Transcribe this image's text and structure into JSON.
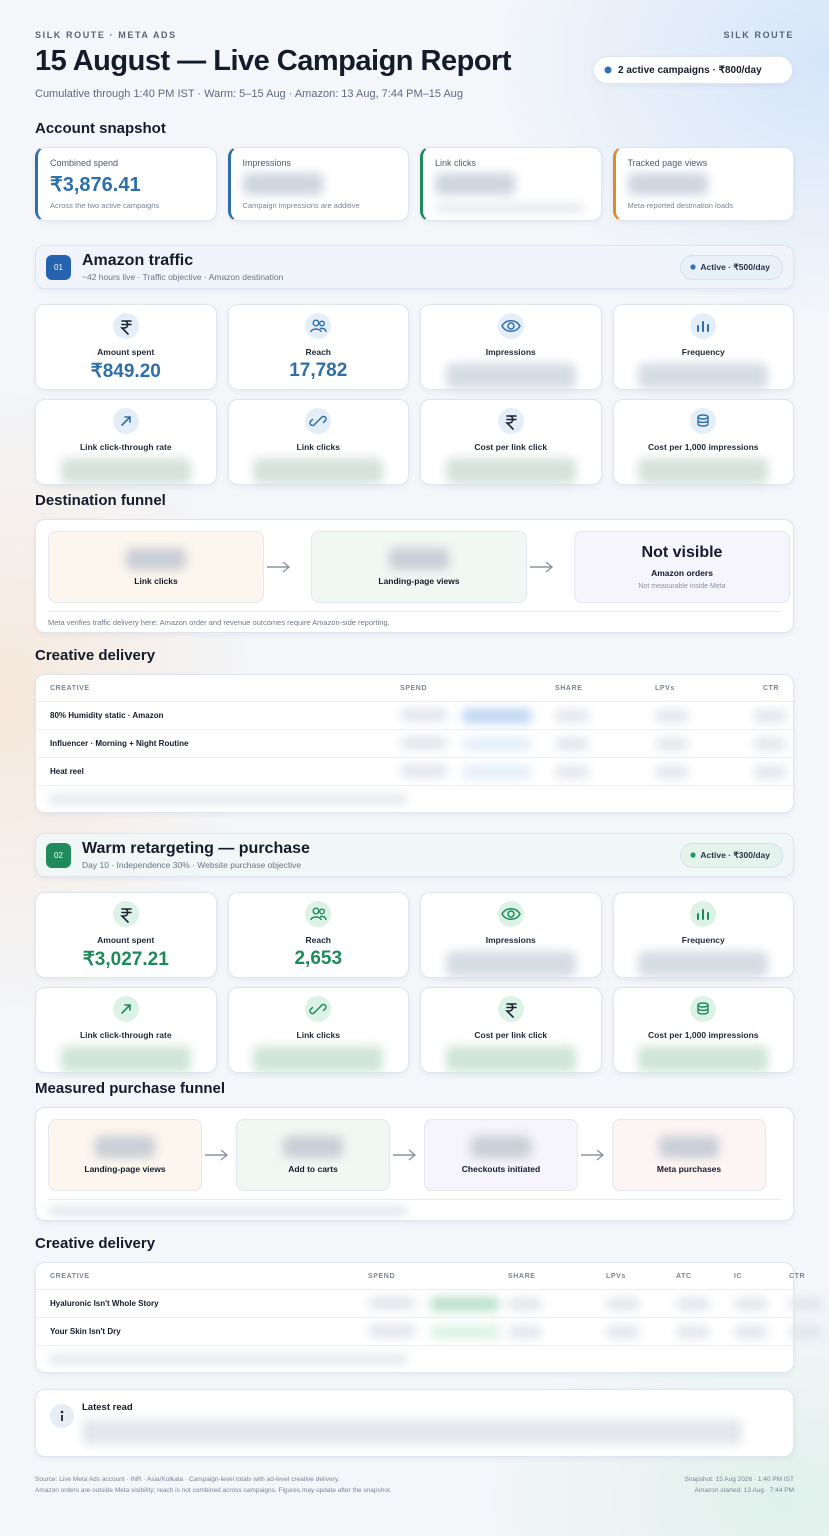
{
  "header": {
    "brand": "SILK ROUTE · META ADS",
    "brand_right": "SILK ROUTE",
    "title": "15 August — Live Campaign Report",
    "subtitle": "Cumulative through 1:40 PM IST · Warm: 5–15 Aug · Amazon: 13 Aug, 7:44 PM–15 Aug",
    "badge": "2 active campaigns · ₹800/day"
  },
  "snapshot": {
    "heading": "Account snapshot",
    "cards": [
      {
        "label": "Combined spend",
        "value": "₹3,876.41",
        "note": "Across the two active campaigns"
      },
      {
        "label": "Impressions",
        "note": "Campaign impressions are additive"
      },
      {
        "label": "Link clicks"
      },
      {
        "label": "Tracked page views",
        "note": "Meta-reported destination loads"
      }
    ]
  },
  "campaigns": [
    {
      "number": "01",
      "name": "Amazon traffic",
      "meta": "~42 hours live · Traffic objective · Amazon destination",
      "status": "Active · ₹500/day",
      "metrics": [
        {
          "label": "Amount spent",
          "value": "₹849.20"
        },
        {
          "label": "Reach",
          "value": "17,782"
        },
        {
          "label": "Impressions"
        },
        {
          "label": "Frequency"
        },
        {
          "label": "Link click-through rate"
        },
        {
          "label": "Link clicks"
        },
        {
          "label": "Cost per link click"
        },
        {
          "label": "Cost per 1,000 impressions"
        }
      ],
      "funnel": {
        "heading": "Destination funnel",
        "steps": [
          {
            "label": "Link clicks"
          },
          {
            "label": "Landing-page views"
          },
          {
            "value": "Not visible",
            "label": "Amazon orders",
            "sub": "Not measurable inside Meta"
          }
        ],
        "note": "Meta verifies traffic delivery here; Amazon order and revenue outcomes require Amazon-side reporting."
      },
      "creative": {
        "heading": "Creative delivery",
        "columns": [
          "CREATIVE",
          "SPEND",
          "SHARE",
          "LPVs",
          "CTR"
        ],
        "rows": [
          "80% Humidity static · Amazon",
          "Influencer · Morning + Night Routine",
          "Heat reel"
        ]
      }
    },
    {
      "number": "02",
      "name": "Warm retargeting — purchase",
      "meta": "Day 10 · Independence 30% · Website purchase objective",
      "status": "Active · ₹300/day",
      "metrics": [
        {
          "label": "Amount spent",
          "value": "₹3,027.21"
        },
        {
          "label": "Reach",
          "value": "2,653"
        },
        {
          "label": "Impressions"
        },
        {
          "label": "Frequency"
        },
        {
          "label": "Link click-through rate"
        },
        {
          "label": "Link clicks"
        },
        {
          "label": "Cost per link click"
        },
        {
          "label": "Cost per 1,000 impressions"
        }
      ],
      "funnel": {
        "heading": "Measured purchase funnel",
        "steps": [
          {
            "label": "Landing-page views"
          },
          {
            "label": "Add to carts"
          },
          {
            "label": "Checkouts initiated"
          },
          {
            "label": "Meta purchases"
          }
        ]
      },
      "creative": {
        "heading": "Creative delivery",
        "columns": [
          "CREATIVE",
          "SPEND",
          "SHARE",
          "LPVs",
          "ATC",
          "IC",
          "CTR"
        ],
        "rows": [
          "Hyaluronic Isn't Whole Story",
          "Your Skin Isn't Dry"
        ]
      }
    }
  ],
  "latest": {
    "title": "Latest read"
  },
  "footer": {
    "left": [
      "Source: Live Meta Ads account · INR · Asia/Kolkata · Campaign-level totals with ad-level creative delivery.",
      "Amazon orders are outside Meta visibility; reach is not combined across campaigns. Figures may update after the snapshot."
    ],
    "right": [
      "Snapshot: 15 Aug 2026 · 1:40 PM IST",
      "Amazon started: 13 Aug · 7:44 PM"
    ]
  }
}
